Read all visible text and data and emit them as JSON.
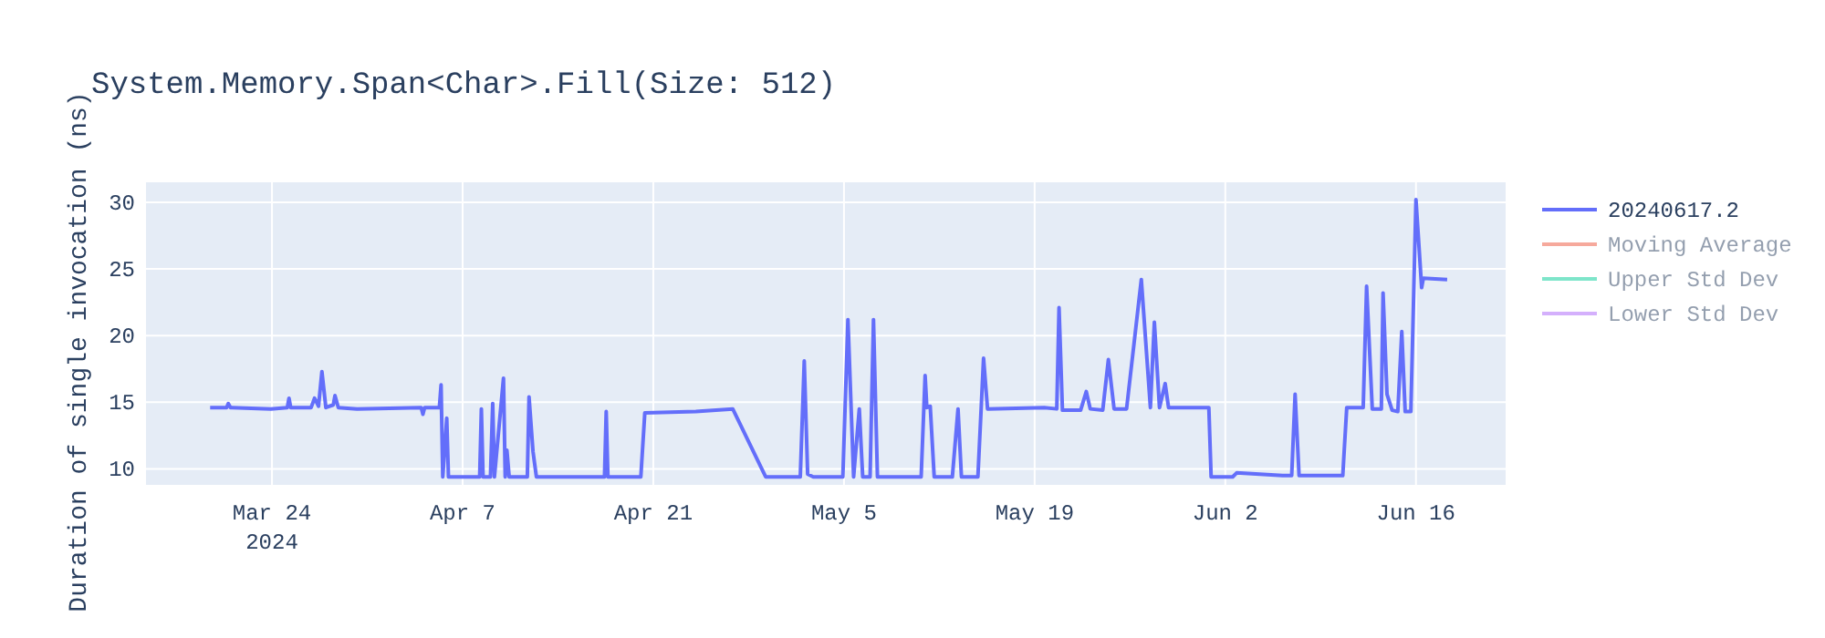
{
  "chart_data": {
    "type": "line",
    "title": "System.Memory.Span<Char>.Fill(Size: 512)",
    "ylabel": "Duration of single invocation (ns)",
    "xlim": [
      "2024-03-14T18:00",
      "2024-06-22T14:00"
    ],
    "xticks": [
      {
        "value": "2024-03-24",
        "label": "Mar 24\n2024"
      },
      {
        "value": "2024-04-07",
        "label": "Apr 7"
      },
      {
        "value": "2024-04-21",
        "label": "Apr 21"
      },
      {
        "value": "2024-05-05",
        "label": "May 5"
      },
      {
        "value": "2024-05-19",
        "label": "May 19"
      },
      {
        "value": "2024-06-02",
        "label": "Jun 2"
      },
      {
        "value": "2024-06-16",
        "label": "Jun 16"
      }
    ],
    "ylim": [
      8.8,
      31.5
    ],
    "yticks": [
      10,
      15,
      20,
      25,
      30
    ],
    "grid": true,
    "legend": "top right",
    "marker": "none",
    "line_style": "solid",
    "x": [
      "2024-03-19T11:00",
      "2024-03-20T16:00",
      "2024-03-20T19:00",
      "2024-03-20T23:00",
      "2024-03-23T22:00",
      "2024-03-25T03:00",
      "2024-03-25T06:00",
      "2024-03-25T09:00",
      "2024-03-26T21:00",
      "2024-03-27T03:00",
      "2024-03-27T10:00",
      "2024-03-27T16:00",
      "2024-03-27T23:00",
      "2024-03-28T12:00",
      "2024-03-28T15:00",
      "2024-03-28T21:00",
      "2024-03-30T06:00",
      "2024-04-03T23:00",
      "2024-04-04T02:00",
      "2024-04-04T05:00",
      "2024-04-05T07:00",
      "2024-04-05T10:00",
      "2024-04-05T13:00",
      "2024-04-05T20:00",
      "2024-04-05T23:00",
      "2024-04-08T06:00",
      "2024-04-08T09:00",
      "2024-04-08T12:00",
      "2024-04-09T01:00",
      "2024-04-09T05:00",
      "2024-04-09T08:00",
      "2024-04-10T00:00",
      "2024-04-10T03:00",
      "2024-04-10T06:00",
      "2024-04-10T10:00",
      "2024-04-11T18:00",
      "2024-04-11T21:00",
      "2024-04-12T04:00",
      "2024-04-12T10:00",
      "2024-04-17T10:00",
      "2024-04-17T13:00",
      "2024-04-17T16:00",
      "2024-04-20T02:00",
      "2024-04-20T09:00",
      "2024-04-24T03:00",
      "2024-04-26T20:00",
      "2024-04-29T06:00",
      "2024-05-01T19:00",
      "2024-05-02T02:00",
      "2024-05-02T08:00",
      "2024-05-02T18:00",
      "2024-05-04T22:00",
      "2024-05-05T07:00",
      "2024-05-05T17:00",
      "2024-05-06T03:00",
      "2024-05-06T09:00",
      "2024-05-06T22:00",
      "2024-05-07T04:00",
      "2024-05-07T11:00",
      "2024-05-10T16:00",
      "2024-05-10T23:00",
      "2024-05-11T02:00",
      "2024-05-11T08:00",
      "2024-05-11T15:00",
      "2024-05-12T23:00",
      "2024-05-13T09:00",
      "2024-05-13T15:00",
      "2024-05-14T20:00",
      "2024-05-15T06:00",
      "2024-05-15T13:00",
      "2024-05-19T17:00",
      "2024-05-20T15:00",
      "2024-05-20T19:00",
      "2024-05-21T01:00",
      "2024-05-22T09:00",
      "2024-05-22T19:00",
      "2024-05-23T02:00",
      "2024-05-24T00:00",
      "2024-05-24T10:00",
      "2024-05-24T20:00",
      "2024-05-25T18:00",
      "2024-05-26T20:00",
      "2024-05-27T12:00",
      "2024-05-27T19:00",
      "2024-05-28T04:00",
      "2024-05-28T14:00",
      "2024-05-28T20:00",
      "2024-05-30T11:00",
      "2024-05-31T19:00",
      "2024-05-31T23:00",
      "2024-06-02T13:00",
      "2024-06-02T20:00",
      "2024-06-06T05:00",
      "2024-06-06T21:00",
      "2024-06-07T03:00",
      "2024-06-07T10:00",
      "2024-06-10T15:00",
      "2024-06-10T22:00",
      "2024-06-12T03:00",
      "2024-06-12T09:00",
      "2024-06-12T19:00",
      "2024-06-13T11:00",
      "2024-06-13T14:00",
      "2024-06-13T21:00",
      "2024-06-14T06:00",
      "2024-06-14T16:00",
      "2024-06-14T23:00",
      "2024-06-15T05:00",
      "2024-06-15T15:00",
      "2024-06-16T00:00",
      "2024-06-16T10:00",
      "2024-06-16T13:00",
      "2024-06-18T07:00"
    ],
    "series": [
      {
        "name": "20240617.2",
        "color": "#636efa",
        "values": [
          14.6,
          14.6,
          14.9,
          14.6,
          14.5,
          14.6,
          15.3,
          14.6,
          14.6,
          15.3,
          14.7,
          17.3,
          14.6,
          14.8,
          15.5,
          14.6,
          14.5,
          14.6,
          14.1,
          14.6,
          14.6,
          16.3,
          9.4,
          13.8,
          9.4,
          9.4,
          14.5,
          9.4,
          9.4,
          14.9,
          9.4,
          16.8,
          9.4,
          11.4,
          9.4,
          9.4,
          15.4,
          11.3,
          9.4,
          9.4,
          14.3,
          9.4,
          9.4,
          14.2,
          14.3,
          14.5,
          9.4,
          9.4,
          18.1,
          9.6,
          9.4,
          9.4,
          21.2,
          9.4,
          14.5,
          9.4,
          9.4,
          21.2,
          9.4,
          9.4,
          17.0,
          14.6,
          14.7,
          9.4,
          9.4,
          14.5,
          9.4,
          9.4,
          18.3,
          14.5,
          14.6,
          14.5,
          22.1,
          14.4,
          14.4,
          15.8,
          14.5,
          14.4,
          18.2,
          14.5,
          14.5,
          24.2,
          14.6,
          21.0,
          14.6,
          16.4,
          14.6,
          14.6,
          14.6,
          9.4,
          9.4,
          9.7,
          9.5,
          9.5,
          15.6,
          9.5,
          9.5,
          14.6,
          14.6,
          23.7,
          14.5,
          14.5,
          23.2,
          15.6,
          14.4,
          14.3,
          20.3,
          14.3,
          14.3,
          30.2,
          23.6,
          24.3,
          24.2
        ]
      },
      {
        "name": "Moving Average",
        "color": "#ef553b",
        "values": [
          null,
          null,
          null,
          null,
          null,
          null,
          null,
          null,
          null,
          null,
          null,
          null,
          null,
          null,
          null,
          null,
          null,
          null,
          null,
          null,
          null,
          null,
          null,
          null,
          null,
          null,
          null,
          null,
          null,
          null,
          null,
          null,
          null,
          null,
          null,
          null,
          null,
          null,
          null,
          null,
          null,
          null,
          null,
          null,
          null,
          null,
          null,
          null,
          null,
          null,
          null,
          null,
          null,
          null,
          null,
          null,
          null,
          null,
          null,
          null,
          null,
          null,
          null,
          null,
          null,
          null,
          null,
          null,
          null,
          null,
          null,
          null,
          null,
          null,
          null,
          null,
          null,
          null,
          null,
          null,
          null,
          null,
          null,
          null,
          null,
          null,
          null,
          null,
          null,
          null,
          null,
          null,
          null,
          null,
          null,
          null,
          null,
          null,
          null,
          null,
          null,
          null,
          null,
          null,
          null,
          null,
          null,
          null,
          null,
          null,
          null,
          null,
          null
        ]
      },
      {
        "name": "Upper Std Dev",
        "color": "#00cc96",
        "values": [
          null,
          null,
          null,
          null,
          null,
          null,
          null,
          null,
          null,
          null,
          null,
          null,
          null,
          null,
          null,
          null,
          null,
          null,
          null,
          null,
          null,
          null,
          null,
          null,
          null,
          null,
          null,
          null,
          null,
          null,
          null,
          null,
          null,
          null,
          null,
          null,
          null,
          null,
          null,
          null,
          null,
          null,
          null,
          null,
          null,
          null,
          null,
          null,
          null,
          null,
          null,
          null,
          null,
          null,
          null,
          null,
          null,
          null,
          null,
          null,
          null,
          null,
          null,
          null,
          null,
          null,
          null,
          null,
          null,
          null,
          null,
          null,
          null,
          null,
          null,
          null,
          null,
          null,
          null,
          null,
          null,
          null,
          null,
          null,
          null,
          null,
          null,
          null,
          null,
          null,
          null,
          null,
          null,
          null,
          null,
          null,
          null,
          null,
          null,
          null,
          null,
          null,
          null,
          null,
          null,
          null,
          null,
          null,
          null,
          null,
          null,
          null,
          null
        ]
      },
      {
        "name": "Lower Std Dev",
        "color": "#ab63fa",
        "values": [
          null,
          null,
          null,
          null,
          null,
          null,
          null,
          null,
          null,
          null,
          null,
          null,
          null,
          null,
          null,
          null,
          null,
          null,
          null,
          null,
          null,
          null,
          null,
          null,
          null,
          null,
          null,
          null,
          null,
          null,
          null,
          null,
          null,
          null,
          null,
          null,
          null,
          null,
          null,
          null,
          null,
          null,
          null,
          null,
          null,
          null,
          null,
          null,
          null,
          null,
          null,
          null,
          null,
          null,
          null,
          null,
          null,
          null,
          null,
          null,
          null,
          null,
          null,
          null,
          null,
          null,
          null,
          null,
          null,
          null,
          null,
          null,
          null,
          null,
          null,
          null,
          null,
          null,
          null,
          null,
          null,
          null,
          null,
          null,
          null,
          null,
          null,
          null,
          null,
          null,
          null,
          null,
          null,
          null,
          null,
          null,
          null,
          null,
          null,
          null,
          null,
          null,
          null,
          null,
          null,
          null,
          null,
          null,
          null,
          null,
          null,
          null,
          null
        ]
      }
    ]
  }
}
